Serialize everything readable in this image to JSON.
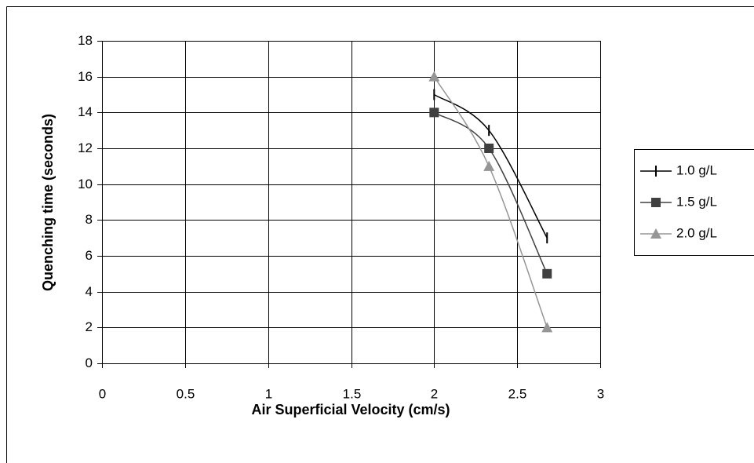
{
  "chart_data": {
    "type": "line",
    "x_label": "Air Superficial Velocity (cm/s)",
    "y_label": "Quenching time (seconds)",
    "x": [
      2,
      2.33,
      2.68
    ],
    "series": [
      {
        "name": "1.0 g/L",
        "color": "#000000",
        "marker": "dash",
        "values": [
          15,
          13,
          7
        ]
      },
      {
        "name": "1.5 g/L",
        "color": "#404040",
        "marker": "square",
        "values": [
          14,
          12,
          5
        ]
      },
      {
        "name": "2.0 g/L",
        "color": "#969696",
        "marker": "triangle",
        "values": [
          16,
          11,
          2
        ]
      }
    ],
    "xlim": [
      0,
      3
    ],
    "xticks": [
      0,
      0.5,
      1,
      1.5,
      2,
      2.5,
      3
    ],
    "ylim": [
      0,
      18
    ],
    "yticks": [
      0,
      2,
      4,
      6,
      8,
      10,
      12,
      14,
      16,
      18
    ],
    "grid": true,
    "smooth": true,
    "legend": "right"
  }
}
